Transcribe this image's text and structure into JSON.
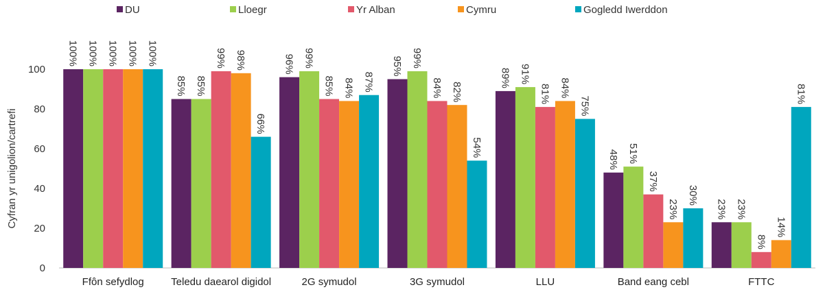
{
  "chart_data": {
    "type": "bar",
    "y_label": "Cyfran yr unigolion/cartrefi",
    "categories": [
      "Ffôn sefydlog",
      "Teledu daearol digidol",
      "2G symudol",
      "3G symudol",
      "LLU",
      "Band eang cebl",
      "FTTC"
    ],
    "series": [
      {
        "name": "DU",
        "color": "#5b2462",
        "values": [
          100,
          85,
          96,
          95,
          89,
          48,
          23
        ],
        "value_labels": [
          "100%",
          "85%",
          "96%",
          "95%",
          "89%",
          "48%",
          "23%"
        ]
      },
      {
        "name": "Lloegr",
        "color": "#9ccf4c",
        "values": [
          100,
          85,
          99,
          99,
          91,
          51,
          23
        ],
        "value_labels": [
          "100%",
          "85%",
          "99%",
          "99%",
          "91%",
          "51%",
          "23%"
        ]
      },
      {
        "name": "Yr Alban",
        "color": "#e2596b",
        "values": [
          100,
          99,
          85,
          84,
          81,
          37,
          8
        ],
        "value_labels": [
          "100%",
          "99%",
          "85%",
          "84%",
          "81%",
          "37%",
          "8%"
        ]
      },
      {
        "name": "Cymru",
        "color": "#f7941e",
        "values": [
          100,
          98,
          84,
          82,
          84,
          23,
          14
        ],
        "value_labels": [
          "100%",
          "98%",
          "84%",
          "82%",
          "84%",
          "23%",
          "14%"
        ]
      },
      {
        "name": "Gogledd Iwerddon",
        "color": "#00a6be",
        "values": [
          100,
          66,
          87,
          54,
          75,
          30,
          81
        ],
        "value_labels": [
          "100%",
          "66%",
          "87%",
          "54%",
          "75%",
          "30%",
          "81%"
        ]
      }
    ],
    "ylim": [
      0,
      100
    ],
    "yticks": [
      0,
      20,
      40,
      60,
      80,
      100
    ],
    "grid": false,
    "legend": "top"
  }
}
